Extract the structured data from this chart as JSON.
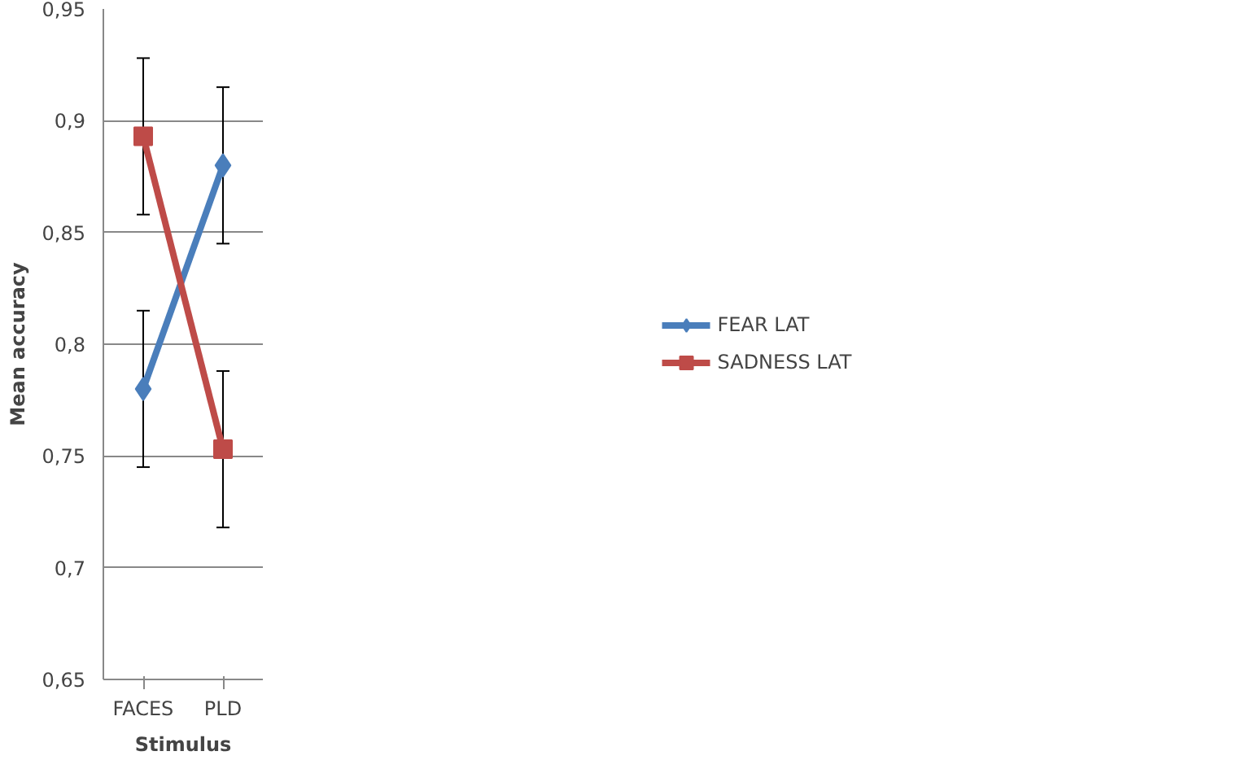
{
  "chart_data": {
    "type": "line",
    "xlabel": "Stimulus",
    "ylabel": "Mean accuracy",
    "categories": [
      "FACES",
      "PLD"
    ],
    "series": [
      {
        "name": "FEAR LAT",
        "color": "#4a7ebb",
        "values": [
          0.78,
          0.88
        ],
        "errors": [
          0.035,
          0.035
        ],
        "marker": "diamond"
      },
      {
        "name": "SADNESS LAT",
        "color": "#be4b48",
        "values": [
          0.893,
          0.753
        ],
        "errors": [
          0.035,
          0.035
        ],
        "marker": "square"
      }
    ],
    "ylim": [
      0.65,
      0.95
    ],
    "yticks": [
      {
        "value": 0.65,
        "label": "0,65"
      },
      {
        "value": 0.7,
        "label": "0,7"
      },
      {
        "value": 0.75,
        "label": "0,75"
      },
      {
        "value": 0.8,
        "label": "0,8"
      },
      {
        "value": 0.85,
        "label": "0,85"
      },
      {
        "value": 0.9,
        "label": "0,9"
      },
      {
        "value": 0.95,
        "label": "0,95"
      }
    ],
    "grid": "y",
    "legend": "right",
    "line_style": "solid"
  }
}
